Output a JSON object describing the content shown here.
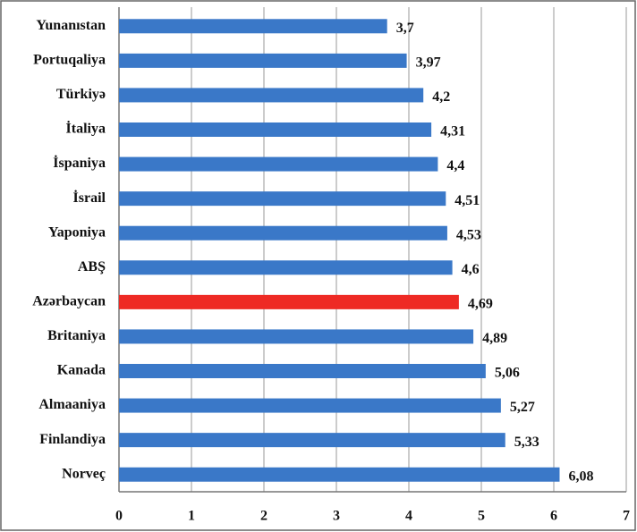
{
  "chart_data": {
    "type": "barh",
    "categories": [
      "Yunanıstan",
      "Portuqaliya",
      "Türkiyə",
      "İtaliya",
      "İspaniya",
      "İsrail",
      "Yaponiya",
      "ABŞ",
      "Azərbaycan",
      "Britaniya",
      "Kanada",
      "Almaaniya",
      "Finlandiya",
      "Norveç"
    ],
    "values": [
      3.7,
      3.97,
      4.2,
      4.31,
      4.4,
      4.51,
      4.53,
      4.6,
      4.69,
      4.89,
      5.06,
      5.27,
      5.33,
      6.08
    ],
    "value_labels": [
      "3,7",
      "3,97",
      "4,2",
      "4,31",
      "4,4",
      "4,51",
      "4,53",
      "4,6",
      "4,69",
      "4,89",
      "5,06",
      "5,27",
      "5,33",
      "6,08"
    ],
    "colors": [
      "#3a78c8",
      "#3a78c8",
      "#3a78c8",
      "#3a78c8",
      "#3a78c8",
      "#3a78c8",
      "#3a78c8",
      "#3a78c8",
      "#ee2a24",
      "#3a78c8",
      "#3a78c8",
      "#3a78c8",
      "#3a78c8",
      "#3a78c8"
    ],
    "xlim": [
      0,
      7
    ],
    "xticks": [
      0,
      1,
      2,
      3,
      4,
      5,
      6,
      7
    ],
    "grid": true
  }
}
